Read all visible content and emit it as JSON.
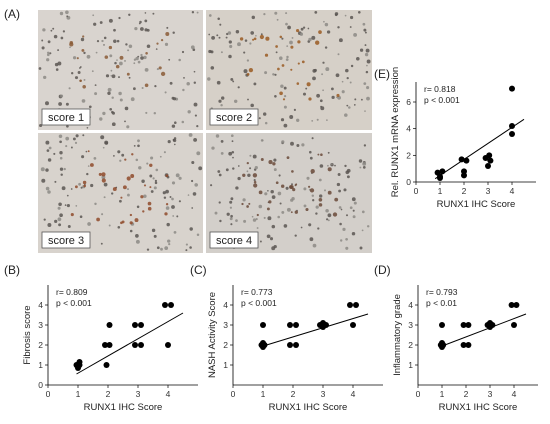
{
  "panel_labels": {
    "A": "(A)",
    "B": "(B)",
    "C": "(C)",
    "D": "(D)",
    "E": "(E)"
  },
  "micrographs": [
    {
      "score_label": "score 1",
      "tint": "#d9d4cf",
      "stain": "#8a5a36"
    },
    {
      "score_label": "score 2",
      "tint": "#d6d0c8",
      "stain": "#9a5a22"
    },
    {
      "score_label": "score 3",
      "tint": "#d8d3cd",
      "stain": "#8f4a2a"
    },
    {
      "score_label": "score 4",
      "tint": "#d3cfca",
      "stain": "#6a4a3a"
    }
  ],
  "colors": {
    "marker": "#000000",
    "trendline": "#000000",
    "axis": "#000000"
  },
  "chart_data": [
    {
      "panel": "B",
      "type": "scatter",
      "xlabel": "RUNX1 IHC Score",
      "ylabel": "Fibrosis score",
      "xlim": [
        0,
        5
      ],
      "ylim": [
        0,
        5
      ],
      "xticks": [
        "0",
        "1",
        "2",
        "3",
        "4"
      ],
      "yticks": [
        "0",
        "1",
        "2",
        "3",
        "4"
      ],
      "annotations": [
        "r= 0.809",
        "p < 0.001"
      ],
      "points": [
        [
          0.95,
          1
        ],
        [
          1.05,
          1
        ],
        [
          1.05,
          1.15
        ],
        [
          1,
          0.85
        ],
        [
          1.9,
          2
        ],
        [
          2.05,
          2
        ],
        [
          2.05,
          3
        ],
        [
          1.95,
          1
        ],
        [
          2.9,
          3
        ],
        [
          3.1,
          3
        ],
        [
          2.9,
          2
        ],
        [
          3.1,
          2
        ],
        [
          3.9,
          4
        ],
        [
          4.1,
          4
        ],
        [
          4,
          2
        ]
      ],
      "trendline": [
        [
          0.95,
          0.55
        ],
        [
          4.5,
          3.6
        ]
      ]
    },
    {
      "panel": "C",
      "type": "scatter",
      "xlabel": "RUNX1 IHC Score",
      "ylabel": "NASH Activity Score",
      "xlim": [
        0,
        5
      ],
      "ylim": [
        0,
        5
      ],
      "xticks": [
        "0",
        "1",
        "2",
        "3",
        "4"
      ],
      "yticks": [
        "1",
        "2",
        "3",
        "4"
      ],
      "annotations": [
        "r= 0.773",
        "p < 0.001"
      ],
      "points": [
        [
          0.95,
          2
        ],
        [
          1.05,
          2
        ],
        [
          1,
          2.1
        ],
        [
          1,
          1.9
        ],
        [
          1,
          3
        ],
        [
          1.9,
          3
        ],
        [
          2.1,
          3
        ],
        [
          1.9,
          2
        ],
        [
          2.1,
          2
        ],
        [
          2.9,
          3
        ],
        [
          3.1,
          3
        ],
        [
          3,
          3.1
        ],
        [
          3,
          2.9
        ],
        [
          3.9,
          4
        ],
        [
          4.1,
          4
        ],
        [
          4,
          3
        ]
      ],
      "trendline": [
        [
          0.9,
          1.9
        ],
        [
          4.5,
          3.55
        ]
      ]
    },
    {
      "panel": "D",
      "type": "scatter",
      "xlabel": "RUNX1 IHC Score",
      "ylabel": "Inflammatory grade",
      "xlim": [
        0,
        5
      ],
      "ylim": [
        0,
        5
      ],
      "xticks": [
        "0",
        "1",
        "2",
        "3",
        "4"
      ],
      "yticks": [
        "1",
        "2",
        "3",
        "4"
      ],
      "annotations": [
        "r= 0.793",
        "p < 0.01"
      ],
      "points": [
        [
          0.95,
          2
        ],
        [
          1.05,
          2
        ],
        [
          1,
          2.1
        ],
        [
          1,
          1.9
        ],
        [
          1,
          3
        ],
        [
          1.9,
          3
        ],
        [
          2.1,
          3
        ],
        [
          1.9,
          2
        ],
        [
          2.1,
          2
        ],
        [
          2.9,
          3
        ],
        [
          3.1,
          3
        ],
        [
          3,
          3.1
        ],
        [
          3,
          2.9
        ],
        [
          3.9,
          4
        ],
        [
          4.1,
          4
        ],
        [
          4,
          3
        ]
      ],
      "trendline": [
        [
          0.9,
          1.9
        ],
        [
          4.5,
          3.55
        ]
      ]
    },
    {
      "panel": "E",
      "type": "scatter",
      "xlabel": "RUNX1 IHC Score",
      "ylabel": "Rel. RUNX1 mRNA expression",
      "xlim": [
        0,
        5
      ],
      "ylim": [
        0,
        7.5
      ],
      "xticks": [
        "0",
        "1",
        "2",
        "3",
        "4"
      ],
      "yticks": [
        "0",
        "2",
        "4",
        "6"
      ],
      "annotations": [
        "r= 0.818",
        "p < 0.001"
      ],
      "points": [
        [
          0.9,
          0.7
        ],
        [
          1,
          0.4
        ],
        [
          1.1,
          0.8
        ],
        [
          1,
          0.3
        ],
        [
          1.9,
          1.7
        ],
        [
          2.1,
          1.6
        ],
        [
          2,
          0.8
        ],
        [
          2,
          0.5
        ],
        [
          2.9,
          1.8
        ],
        [
          3.05,
          2.0
        ],
        [
          3,
          1.2
        ],
        [
          3.1,
          1.6
        ],
        [
          4,
          7
        ],
        [
          4,
          4.2
        ],
        [
          4,
          3.6
        ]
      ],
      "trendline": [
        [
          0.8,
          0.25
        ],
        [
          4.5,
          4.7
        ]
      ]
    }
  ]
}
